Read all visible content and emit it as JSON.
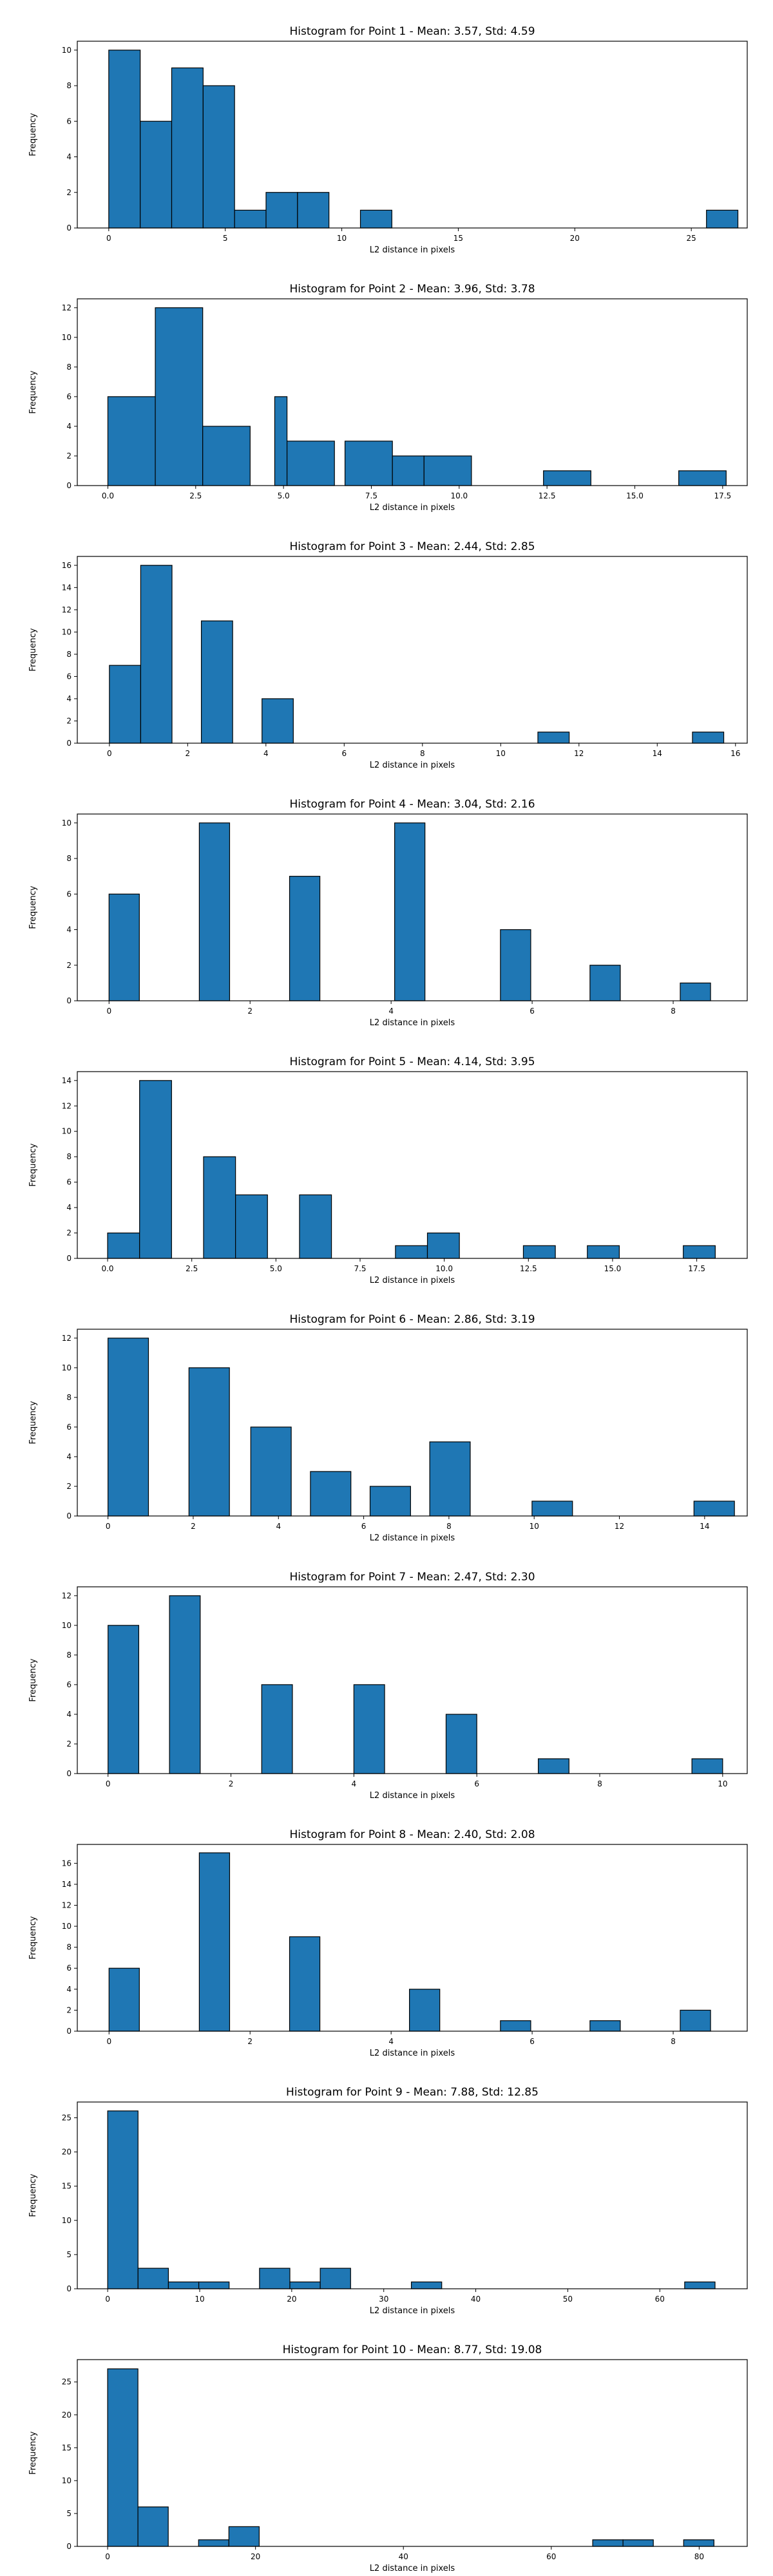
{
  "chart_data": [
    {
      "type": "bar",
      "title": "Histogram for Point 1 - Mean: 3.57, Std: 4.59",
      "xlabel": "L2 distance in pixels",
      "ylabel": "Frequency",
      "xlim": [
        -1.35,
        27.4
      ],
      "ylim": [
        0,
        10.5
      ],
      "xticks": [
        0,
        5,
        10,
        15,
        20,
        25
      ],
      "yticks": [
        0,
        2,
        4,
        6,
        8,
        10
      ],
      "bins": [
        {
          "x0": 0.0,
          "x1": 1.35,
          "count": 10
        },
        {
          "x0": 1.35,
          "x1": 2.7,
          "count": 6
        },
        {
          "x0": 2.7,
          "x1": 4.05,
          "count": 9
        },
        {
          "x0": 4.05,
          "x1": 5.4,
          "count": 8
        },
        {
          "x0": 5.4,
          "x1": 6.75,
          "count": 1
        },
        {
          "x0": 6.75,
          "x1": 8.1,
          "count": 2
        },
        {
          "x0": 8.1,
          "x1": 9.45,
          "count": 2
        },
        {
          "x0": 10.8,
          "x1": 12.15,
          "count": 1
        },
        {
          "x0": 25.65,
          "x1": 27.0,
          "count": 1
        }
      ]
    },
    {
      "type": "bar",
      "title": "Histogram for Point 2 - Mean: 3.96, Std: 3.78",
      "xlabel": "L2 distance in pixels",
      "ylabel": "Frequency",
      "xlim": [
        -0.87,
        18.2
      ],
      "ylim": [
        0,
        12.6
      ],
      "xticks": [
        0.0,
        2.5,
        5.0,
        7.5,
        10.0,
        12.5,
        15.0,
        17.5
      ],
      "xtick_labels": [
        "0.0",
        "2.5",
        "5.0",
        "7.5",
        "10.0",
        "12.5",
        "15.0",
        "17.5"
      ],
      "yticks": [
        0,
        2,
        4,
        6,
        8,
        10,
        12
      ],
      "bins": [
        {
          "x0": 0.0,
          "x1": 1.35,
          "count": 6
        },
        {
          "x0": 1.35,
          "x1": 2.7,
          "count": 12
        },
        {
          "x0": 2.7,
          "x1": 4.05,
          "count": 4
        },
        {
          "x0": 4.75,
          "x1": 5.1,
          "count": 6
        },
        {
          "x0": 5.1,
          "x1": 6.45,
          "count": 3
        },
        {
          "x0": 6.75,
          "x1": 8.1,
          "count": 3
        },
        {
          "x0": 8.1,
          "x1": 9.0,
          "count": 2
        },
        {
          "x0": 9.0,
          "x1": 10.35,
          "count": 2
        },
        {
          "x0": 12.4,
          "x1": 13.75,
          "count": 1
        },
        {
          "x0": 16.25,
          "x1": 17.6,
          "count": 1
        }
      ]
    },
    {
      "type": "bar",
      "title": "Histogram for Point 3 - Mean: 2.44, Std: 2.85",
      "xlabel": "L2 distance in pixels",
      "ylabel": "Frequency",
      "xlim": [
        -0.82,
        16.3
      ],
      "ylim": [
        0,
        16.8
      ],
      "xticks": [
        0,
        2,
        4,
        6,
        8,
        10,
        12,
        14,
        16
      ],
      "yticks": [
        0,
        2,
        4,
        6,
        8,
        10,
        12,
        14,
        16
      ],
      "bins": [
        {
          "x0": 0.0,
          "x1": 0.8,
          "count": 7
        },
        {
          "x0": 0.8,
          "x1": 1.6,
          "count": 16
        },
        {
          "x0": 2.35,
          "x1": 3.15,
          "count": 11
        },
        {
          "x0": 3.9,
          "x1": 4.7,
          "count": 4
        },
        {
          "x0": 10.95,
          "x1": 11.75,
          "count": 1
        },
        {
          "x0": 14.9,
          "x1": 15.7,
          "count": 1
        }
      ]
    },
    {
      "type": "bar",
      "title": "Histogram for Point 4 - Mean: 3.04, Std: 2.16",
      "xlabel": "L2 distance in pixels",
      "ylabel": "Frequency",
      "xlim": [
        -0.45,
        9.05
      ],
      "ylim": [
        0,
        10.5
      ],
      "xticks": [
        0,
        2,
        4,
        6,
        8
      ],
      "yticks": [
        0,
        2,
        4,
        6,
        8,
        10
      ],
      "bins": [
        {
          "x0": 0.0,
          "x1": 0.43,
          "count": 6
        },
        {
          "x0": 1.28,
          "x1": 1.71,
          "count": 10
        },
        {
          "x0": 2.56,
          "x1": 2.99,
          "count": 7
        },
        {
          "x0": 4.05,
          "x1": 4.48,
          "count": 10
        },
        {
          "x0": 5.55,
          "x1": 5.98,
          "count": 4
        },
        {
          "x0": 6.82,
          "x1": 7.25,
          "count": 2
        },
        {
          "x0": 8.1,
          "x1": 8.53,
          "count": 1
        }
      ]
    },
    {
      "type": "bar",
      "title": "Histogram for Point 5 - Mean: 4.14, Std: 3.95",
      "xlabel": "L2 distance in pixels",
      "ylabel": "Frequency",
      "xlim": [
        -0.9,
        19.0
      ],
      "ylim": [
        0,
        14.7
      ],
      "xticks": [
        0.0,
        2.5,
        5.0,
        7.5,
        10.0,
        12.5,
        15.0,
        17.5
      ],
      "xtick_labels": [
        "0.0",
        "2.5",
        "5.0",
        "7.5",
        "10.0",
        "12.5",
        "15.0",
        "17.5"
      ],
      "yticks": [
        0,
        2,
        4,
        6,
        8,
        10,
        12,
        14
      ],
      "bins": [
        {
          "x0": 0.0,
          "x1": 0.95,
          "count": 2
        },
        {
          "x0": 0.95,
          "x1": 1.9,
          "count": 14
        },
        {
          "x0": 2.85,
          "x1": 3.8,
          "count": 8
        },
        {
          "x0": 3.8,
          "x1": 4.75,
          "count": 5
        },
        {
          "x0": 5.7,
          "x1": 6.65,
          "count": 5
        },
        {
          "x0": 8.55,
          "x1": 9.5,
          "count": 1
        },
        {
          "x0": 9.5,
          "x1": 10.45,
          "count": 2
        },
        {
          "x0": 12.35,
          "x1": 13.3,
          "count": 1
        },
        {
          "x0": 14.25,
          "x1": 15.2,
          "count": 1
        },
        {
          "x0": 17.1,
          "x1": 18.05,
          "count": 1
        }
      ]
    },
    {
      "type": "bar",
      "title": "Histogram for Point 6 - Mean: 2.86, Std: 3.19",
      "xlabel": "L2 distance in pixels",
      "ylabel": "Frequency",
      "xlim": [
        -0.72,
        15.0
      ],
      "ylim": [
        0,
        12.6
      ],
      "xticks": [
        0,
        2,
        4,
        6,
        8,
        10,
        12,
        14
      ],
      "yticks": [
        0,
        2,
        4,
        6,
        8,
        10,
        12
      ],
      "bins": [
        {
          "x0": 0.0,
          "x1": 0.95,
          "count": 12
        },
        {
          "x0": 1.9,
          "x1": 2.85,
          "count": 10
        },
        {
          "x0": 3.35,
          "x1": 4.3,
          "count": 6
        },
        {
          "x0": 4.75,
          "x1": 5.7,
          "count": 3
        },
        {
          "x0": 6.15,
          "x1": 7.1,
          "count": 2
        },
        {
          "x0": 7.55,
          "x1": 8.5,
          "count": 5
        },
        {
          "x0": 9.95,
          "x1": 10.9,
          "count": 1
        },
        {
          "x0": 13.75,
          "x1": 14.7,
          "count": 1
        }
      ]
    },
    {
      "type": "bar",
      "title": "Histogram for Point 7 - Mean: 2.47, Std: 2.30",
      "xlabel": "L2 distance in pixels",
      "ylabel": "Frequency",
      "xlim": [
        -0.5,
        10.4
      ],
      "ylim": [
        0,
        12.6
      ],
      "xticks": [
        0,
        2,
        4,
        6,
        8,
        10
      ],
      "yticks": [
        0,
        2,
        4,
        6,
        8,
        10,
        12
      ],
      "bins": [
        {
          "x0": 0.0,
          "x1": 0.5,
          "count": 10
        },
        {
          "x0": 1.0,
          "x1": 1.5,
          "count": 12
        },
        {
          "x0": 2.5,
          "x1": 3.0,
          "count": 6
        },
        {
          "x0": 4.0,
          "x1": 4.5,
          "count": 6
        },
        {
          "x0": 5.5,
          "x1": 6.0,
          "count": 4
        },
        {
          "x0": 7.0,
          "x1": 7.5,
          "count": 1
        },
        {
          "x0": 9.5,
          "x1": 10.0,
          "count": 1
        }
      ]
    },
    {
      "type": "bar",
      "title": "Histogram for Point 8 - Mean: 2.40, Std: 2.08",
      "xlabel": "L2 distance in pixels",
      "ylabel": "Frequency",
      "xlim": [
        -0.45,
        9.05
      ],
      "ylim": [
        0,
        17.8
      ],
      "xticks": [
        0,
        2,
        4,
        6,
        8
      ],
      "yticks": [
        0,
        2,
        4,
        6,
        8,
        10,
        12,
        14,
        16
      ],
      "bins": [
        {
          "x0": 0.0,
          "x1": 0.43,
          "count": 6
        },
        {
          "x0": 1.28,
          "x1": 1.71,
          "count": 17
        },
        {
          "x0": 2.56,
          "x1": 2.99,
          "count": 9
        },
        {
          "x0": 4.26,
          "x1": 4.69,
          "count": 4
        },
        {
          "x0": 5.55,
          "x1": 5.98,
          "count": 1
        },
        {
          "x0": 6.82,
          "x1": 7.25,
          "count": 1
        },
        {
          "x0": 8.1,
          "x1": 8.53,
          "count": 2
        }
      ]
    },
    {
      "type": "bar",
      "title": "Histogram for Point 9 - Mean: 7.88, Std: 12.85",
      "xlabel": "L2 distance in pixels",
      "ylabel": "Frequency",
      "xlim": [
        -3.3,
        69.5
      ],
      "ylim": [
        0,
        27.3
      ],
      "xticks": [
        0,
        10,
        20,
        30,
        40,
        50,
        60
      ],
      "yticks": [
        0,
        5,
        10,
        15,
        20,
        25
      ],
      "bins": [
        {
          "x0": 0.0,
          "x1": 3.3,
          "count": 26
        },
        {
          "x0": 3.3,
          "x1": 6.6,
          "count": 3
        },
        {
          "x0": 6.6,
          "x1": 9.9,
          "count": 1
        },
        {
          "x0": 9.9,
          "x1": 13.2,
          "count": 1
        },
        {
          "x0": 16.5,
          "x1": 19.8,
          "count": 3
        },
        {
          "x0": 19.8,
          "x1": 23.1,
          "count": 1
        },
        {
          "x0": 23.1,
          "x1": 26.4,
          "count": 3
        },
        {
          "x0": 33.0,
          "x1": 36.3,
          "count": 1
        },
        {
          "x0": 62.7,
          "x1": 66.0,
          "count": 1
        }
      ]
    },
    {
      "type": "bar",
      "title": "Histogram for Point 10 - Mean: 8.77, Std: 19.08",
      "xlabel": "L2 distance in pixels",
      "ylabel": "Frequency",
      "xlim": [
        -4.1,
        86.5
      ],
      "ylim": [
        0,
        28.4
      ],
      "xticks": [
        0,
        20,
        40,
        60,
        80
      ],
      "yticks": [
        0,
        5,
        10,
        15,
        20,
        25
      ],
      "bins": [
        {
          "x0": 0.0,
          "x1": 4.1,
          "count": 27
        },
        {
          "x0": 4.1,
          "x1": 8.2,
          "count": 6
        },
        {
          "x0": 12.3,
          "x1": 16.4,
          "count": 1
        },
        {
          "x0": 16.4,
          "x1": 20.5,
          "count": 3
        },
        {
          "x0": 65.6,
          "x1": 69.7,
          "count": 1
        },
        {
          "x0": 69.7,
          "x1": 73.8,
          "count": 1
        },
        {
          "x0": 77.9,
          "x1": 82.0,
          "count": 1
        }
      ]
    }
  ]
}
